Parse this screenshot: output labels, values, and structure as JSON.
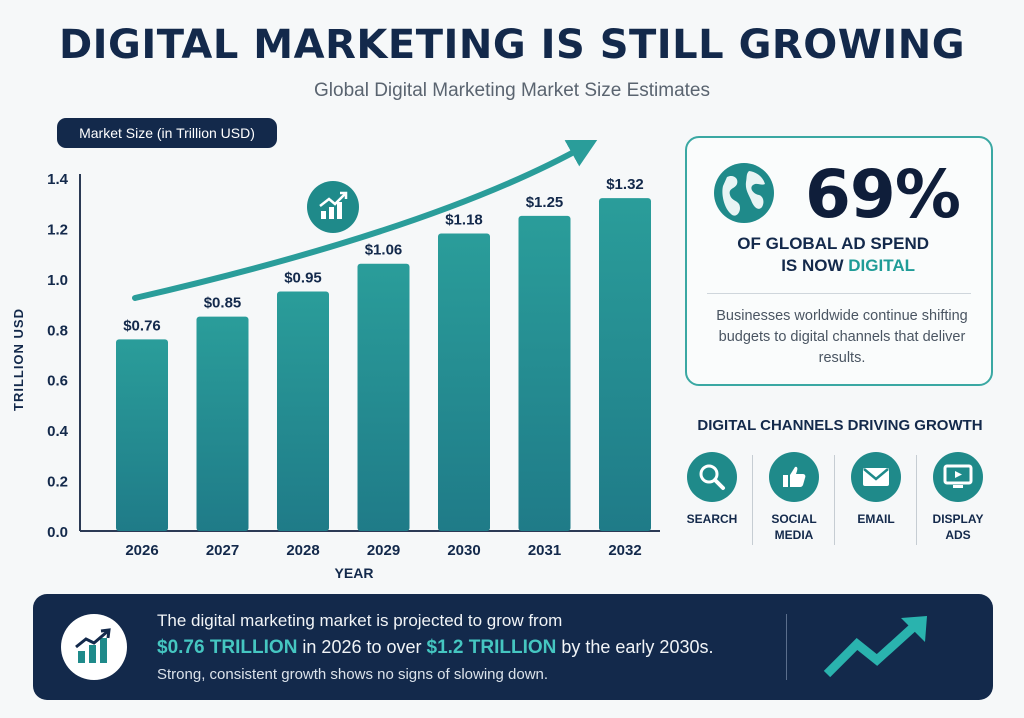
{
  "header": {
    "title": "DIGITAL MARKETING IS STILL GROWING",
    "subtitle": "Global Digital Marketing Market Size Estimates"
  },
  "legend_pill": "Market Size (in Trillion USD)",
  "chart_data": {
    "type": "bar",
    "categories": [
      "2026",
      "2027",
      "2028",
      "2029",
      "2030",
      "2031",
      "2032"
    ],
    "values": [
      0.76,
      0.85,
      0.95,
      1.06,
      1.18,
      1.25,
      1.32
    ],
    "data_labels": [
      "$0.76",
      "$0.85",
      "$0.95",
      "$1.06",
      "$1.18",
      "$1.25",
      "$1.32"
    ],
    "xlabel": "YEAR",
    "ylabel": "TRILLION USD",
    "ylim": [
      0,
      1.4
    ],
    "yticks": [
      "0.0",
      "0.2",
      "0.4",
      "0.6",
      "0.8",
      "1.0",
      "1.2",
      "1.4"
    ],
    "grid": false,
    "colors": {
      "bar_top": "#2a9d9a",
      "bar_bottom": "#1f7b88",
      "trend_arrow": "#2a9d9a"
    }
  },
  "stat_card": {
    "percent": "69%",
    "line1": "OF GLOBAL AD SPEND",
    "line2_prefix": "IS NOW ",
    "line2_accent": "DIGITAL",
    "description": "Businesses worldwide continue shifting budgets to digital channels that deliver results."
  },
  "channels": {
    "title": "DIGITAL CHANNELS DRIVING GROWTH",
    "items": [
      {
        "label": "SEARCH",
        "icon": "search-icon"
      },
      {
        "label": "SOCIAL MEDIA",
        "icon": "thumbs-up-icon"
      },
      {
        "label": "EMAIL",
        "icon": "envelope-icon"
      },
      {
        "label": "DISPLAY ADS",
        "icon": "display-icon"
      }
    ]
  },
  "banner": {
    "line1": "The digital marketing market is projected to grow from",
    "line2_hl1": "$0.76 TRILLION",
    "line2_mid": " in 2026 to over ",
    "line2_hl2": "$1.2 TRILLION",
    "line2_end": " by the early 2030s.",
    "line3": "Strong, consistent growth shows no signs of slowing down."
  },
  "colors": {
    "navy": "#13294b",
    "teal": "#1f9c97",
    "background": "#f6f8f9"
  }
}
